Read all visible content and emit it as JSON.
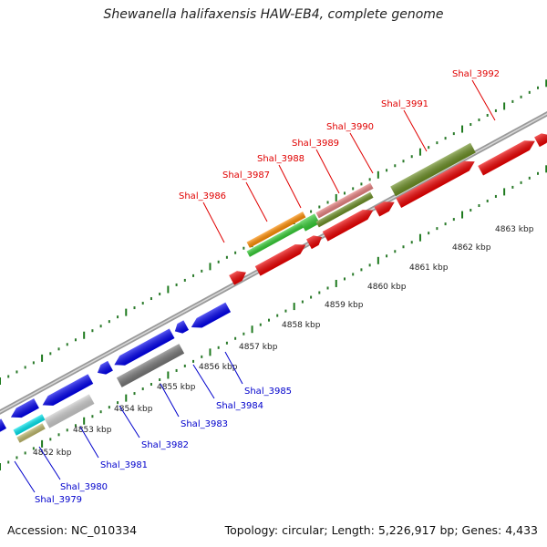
{
  "title": "Shewanella halifaxensis HAW-EB4, complete genome",
  "footer": {
    "accession": "Accession: NC_010334",
    "summary": "Topology: circular; Length: 5,226,917 bp; Genes: 4,433"
  },
  "ticks": [
    "4852 kbp",
    "4853 kbp",
    "4854 kbp",
    "4855 kbp",
    "4856 kbp",
    "4857 kbp",
    "4858 kbp",
    "4859 kbp",
    "4860 kbp",
    "4861 kbp",
    "4862 kbp",
    "4863 kbp"
  ],
  "genes_forward": [
    "Shal_3986",
    "Shal_3987",
    "Shal_3988",
    "Shal_3989",
    "Shal_3990",
    "Shal_3991",
    "Shal_3992"
  ],
  "genes_reverse": [
    "Shal_3979",
    "Shal_3980",
    "Shal_3981",
    "Shal_3982",
    "Shal_3983",
    "Shal_3984",
    "Shal_3985"
  ],
  "colors": {
    "forward_label": "#e00000",
    "reverse_label": "#0000cc",
    "forward_cds": "#ee0000",
    "reverse_cds": "#0000ee",
    "backbone": "#999999",
    "dots": "#2a7a2a",
    "olive": "#6b8e23",
    "orange": "#ff8c00",
    "green": "#33cc33",
    "pink": "#e88080",
    "gray": "#777777",
    "lightgray": "#cccccc",
    "cyan": "#00e5ee",
    "tan": "#bdb76b"
  }
}
